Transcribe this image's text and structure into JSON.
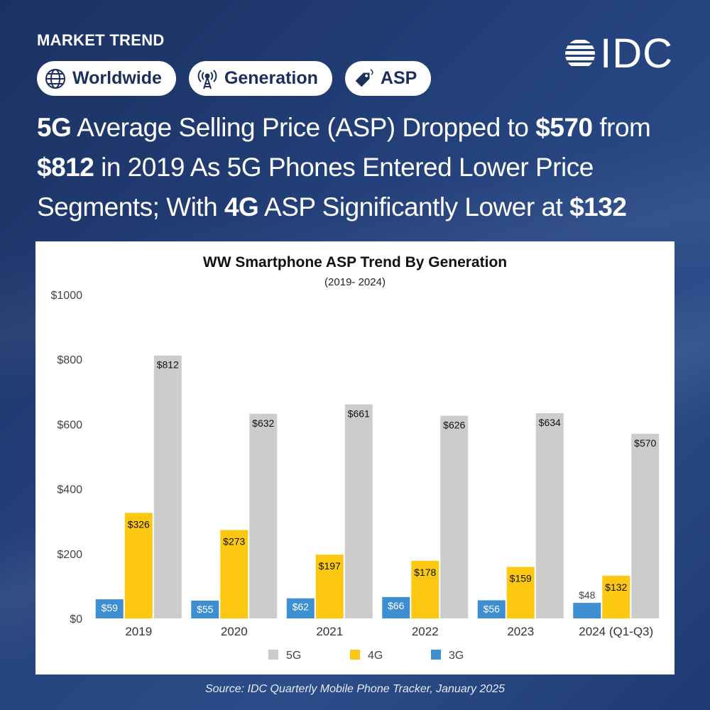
{
  "header": {
    "kicker": "MARKET TREND",
    "logo": "IDC",
    "pills": [
      {
        "label": "Worldwide",
        "icon": "globe-icon"
      },
      {
        "label": "Generation",
        "icon": "antenna-icon"
      },
      {
        "label": "ASP",
        "icon": "price-tag-icon"
      }
    ]
  },
  "headline": {
    "line1": [
      {
        "text": "5G",
        "bold": true
      },
      {
        "text": " Average Selling Price (ASP) Dropped to ",
        "bold": false
      },
      {
        "text": "$570",
        "bold": true
      },
      {
        "text": " from",
        "bold": false
      }
    ],
    "line2": [
      {
        "text": "$812",
        "bold": true
      },
      {
        "text": " in 2019 As 5G Phones Entered Lower Price",
        "bold": false
      }
    ],
    "line3": [
      {
        "text": "Segments; With ",
        "bold": false
      },
      {
        "text": "4G",
        "bold": true
      },
      {
        "text": " ASP Significantly Lower at ",
        "bold": false
      },
      {
        "text": "$132",
        "bold": true
      }
    ]
  },
  "chart_data": {
    "type": "bar",
    "title": "WW Smartphone ASP Trend By Generation",
    "subtitle": "(2019- 2024)",
    "xlabel": "",
    "ylabel": "",
    "ylim": [
      0,
      1000
    ],
    "yticks": [
      0,
      200,
      400,
      600,
      800,
      1000
    ],
    "ytick_labels": [
      "$0",
      "$200",
      "$400",
      "$600",
      "$800",
      "$1000"
    ],
    "grid": false,
    "legend_position": "bottom",
    "categories": [
      "2019",
      "2020",
      "2021",
      "2022",
      "2023",
      "2024 (Q1-Q3)"
    ],
    "series": [
      {
        "name": "3G",
        "color": "#3d8fd1",
        "values": [
          59,
          55,
          62,
          66,
          56,
          48
        ],
        "labels": [
          "$59",
          "$55",
          "$62",
          "$66",
          "$56",
          "$48"
        ]
      },
      {
        "name": "4G",
        "color": "#fcc812",
        "values": [
          326,
          273,
          197,
          178,
          159,
          132
        ],
        "labels": [
          "$326",
          "$273",
          "$197",
          "$178",
          "$159",
          "$132"
        ]
      },
      {
        "name": "5G",
        "color": "#cccccc",
        "values": [
          812,
          632,
          661,
          626,
          634,
          570
        ],
        "labels": [
          "$812",
          "$632",
          "$661",
          "$626",
          "$634",
          "$570"
        ]
      }
    ],
    "legend_order": [
      "5G",
      "4G",
      "3G"
    ]
  },
  "footer": {
    "source": "Source: IDC Quarterly Mobile Phone Tracker, January 2025"
  }
}
